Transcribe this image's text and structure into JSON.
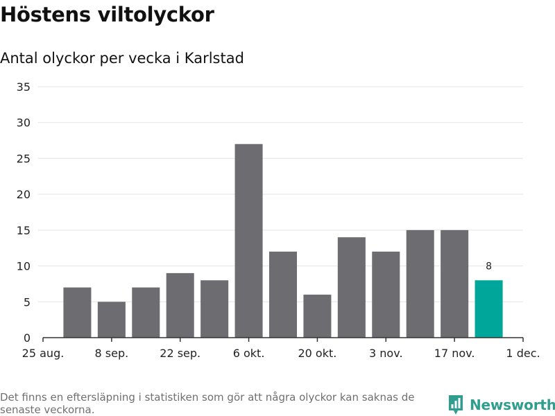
{
  "header": {
    "title": "Höstens viltolyckor",
    "subtitle": "Antal olyckor per vecka i Karlstad"
  },
  "chart_data": {
    "type": "bar",
    "categories": [
      "1 sep.",
      "8 sep.",
      "15 sep.",
      "22 sep.",
      "29 sep.",
      "6 okt.",
      "13 okt.",
      "20 okt.",
      "27 okt.",
      "3 nov.",
      "10 nov.",
      "17 nov.",
      "24 nov."
    ],
    "values": [
      7,
      5,
      7,
      9,
      8,
      27,
      12,
      6,
      14,
      12,
      15,
      15,
      8
    ],
    "highlight_index": 12,
    "highlight_label": "8",
    "x_ticks": [
      "25 aug.",
      "8 sep.",
      "22 sep.",
      "6 okt.",
      "20 okt.",
      "3 nov.",
      "17 nov.",
      "1 dec."
    ],
    "y_ticks": [
      "0",
      "5",
      "10",
      "15",
      "20",
      "25",
      "30",
      "35"
    ],
    "ylim": [
      0,
      35
    ],
    "grid": true,
    "colors": {
      "bar": "#6d6c71",
      "highlight": "#00a69a",
      "grid": "#e3e3e3",
      "axis": "#333333"
    }
  },
  "footer": {
    "note": "Det finns en eftersläpning i statistiken som gör att några olyckor kan saknas de senaste veckorna.",
    "brand": "Newsworthy",
    "brand_color": "#2f9e8f",
    "brand_icon": "newsworthy-logo-icon"
  }
}
